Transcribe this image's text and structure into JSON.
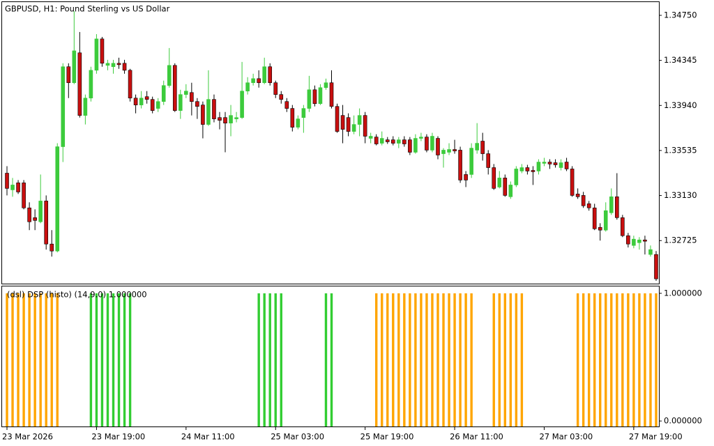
{
  "chart_data": [
    {
      "type": "candlestick",
      "title": "GBPUSD, H1:  Pound Sterling vs US Dollar",
      "categories": [
        "23 Mar 2026",
        null,
        null,
        null,
        null,
        null,
        null,
        null,
        null,
        null,
        null,
        null,
        null,
        null,
        null,
        null,
        "23 Mar 19:00",
        null,
        null,
        null,
        null,
        null,
        null,
        null,
        null,
        null,
        null,
        null,
        null,
        null,
        null,
        null,
        "24 Mar 11:00",
        null,
        null,
        null,
        null,
        null,
        null,
        null,
        null,
        null,
        null,
        null,
        null,
        null,
        null,
        null,
        "25 Mar 03:00",
        null,
        null,
        null,
        null,
        null,
        null,
        null,
        null,
        null,
        null,
        null,
        null,
        null,
        null,
        null,
        "25 Mar 19:00",
        null,
        null,
        null,
        null,
        null,
        null,
        null,
        null,
        null,
        null,
        null,
        null,
        null,
        null,
        null,
        "26 Mar 11:00",
        null,
        null,
        null,
        null,
        null,
        null,
        null,
        null,
        null,
        null,
        null,
        null,
        null,
        null,
        null,
        "27 Mar 03:00",
        null,
        null,
        null,
        null,
        null,
        null,
        null,
        null,
        null,
        null,
        null,
        null,
        null,
        null,
        null,
        "27 Mar 19:00",
        null,
        null,
        null,
        null
      ],
      "open": [
        1.33331,
        1.33181,
        1.33244,
        1.33244,
        1.33019,
        1.32931,
        1.32894,
        1.33081,
        1.32694,
        1.32631,
        1.33569,
        1.34288,
        1.34144,
        1.34413,
        1.3385,
        1.34006,
        1.34256,
        1.34538,
        1.343,
        1.34288,
        1.34319,
        1.34319,
        1.34256,
        1.34006,
        1.33944,
        1.34019,
        1.33994,
        1.33913,
        1.33975,
        1.34119,
        1.343,
        1.33894,
        1.34038,
        1.34056,
        1.33975,
        1.33944,
        1.33769,
        1.33994,
        1.33831,
        1.33831,
        1.33781,
        1.33819,
        1.33831,
        1.34069,
        1.34144,
        1.34181,
        1.34144,
        1.34288,
        1.34144,
        1.34038,
        1.33975,
        1.33913,
        1.33744,
        1.33831,
        1.33913,
        1.34081,
        1.33956,
        1.341,
        1.34144,
        1.33931,
        1.3385,
        1.33831,
        1.33706,
        1.33769,
        1.3385,
        1.33644,
        1.33656,
        1.336,
        1.33631,
        1.33631,
        1.336,
        1.33631,
        1.33631,
        1.33519,
        1.33644,
        1.33656,
        1.33538,
        1.33644,
        1.33506,
        1.33519,
        1.33544,
        1.33538,
        1.33319,
        1.33319,
        1.33538,
        1.33619,
        1.33506,
        1.33381,
        1.33206,
        1.33288,
        1.33119,
        1.33225,
        1.3335,
        1.33381,
        1.33356,
        1.3335,
        1.33419,
        1.33431,
        1.33425,
        1.33381,
        1.33431,
        1.33369,
        1.33144,
        1.33131,
        1.33056,
        1.33019,
        1.32844,
        1.32819,
        1.32975,
        1.33119,
        1.32931,
        1.32769,
        1.32681,
        1.32706,
        1.32731,
        1.326,
        1.326
      ],
      "high": [
        1.33394,
        1.33288,
        1.33269,
        1.33269,
        1.33069,
        1.33006,
        1.33319,
        1.33131,
        1.32819,
        1.336,
        1.34319,
        1.34319,
        1.34788,
        1.346,
        1.34038,
        1.34288,
        1.34581,
        1.34556,
        1.3435,
        1.3435,
        1.34369,
        1.3435,
        1.34269,
        1.34038,
        1.34069,
        1.34069,
        1.34019,
        1.34006,
        1.34163,
        1.34456,
        1.34319,
        1.34081,
        1.34131,
        1.34144,
        1.34006,
        1.33975,
        1.34256,
        1.34038,
        1.33881,
        1.33881,
        1.33944,
        1.33881,
        1.34331,
        1.34194,
        1.34225,
        1.34256,
        1.34369,
        1.34319,
        1.34163,
        1.34069,
        1.34006,
        1.33944,
        1.3385,
        1.33944,
        1.34206,
        1.34119,
        1.34131,
        1.34181,
        1.34256,
        1.33956,
        1.33944,
        1.33869,
        1.3385,
        1.33913,
        1.33881,
        1.33694,
        1.33681,
        1.33706,
        1.33656,
        1.33663,
        1.33656,
        1.33663,
        1.33656,
        1.33681,
        1.33694,
        1.33681,
        1.33694,
        1.33663,
        1.33556,
        1.336,
        1.33631,
        1.33569,
        1.3335,
        1.336,
        1.33781,
        1.33694,
        1.33538,
        1.33413,
        1.3335,
        1.33319,
        1.33256,
        1.33394,
        1.33413,
        1.33406,
        1.33394,
        1.33456,
        1.33469,
        1.33456,
        1.33456,
        1.33456,
        1.33469,
        1.33394,
        1.33194,
        1.33163,
        1.33081,
        1.33056,
        1.32881,
        1.33069,
        1.33194,
        1.33331,
        1.32956,
        1.32794,
        1.32769,
        1.32756,
        1.32769,
        1.32681,
        1.32631
      ],
      "low": [
        1.33131,
        1.33119,
        1.33144,
        1.33006,
        1.32819,
        1.32819,
        1.32881,
        1.32644,
        1.32581,
        1.32619,
        1.33431,
        1.34006,
        1.34131,
        1.33831,
        1.33769,
        1.33975,
        1.34225,
        1.34288,
        1.34256,
        1.34225,
        1.34269,
        1.34225,
        1.33975,
        1.33869,
        1.33913,
        1.33956,
        1.33869,
        1.33881,
        1.33944,
        1.341,
        1.33881,
        1.33819,
        1.34006,
        1.3385,
        1.33819,
        1.33644,
        1.33756,
        1.33788,
        1.33725,
        1.33519,
        1.33663,
        1.33788,
        1.33819,
        1.34038,
        1.34119,
        1.341,
        1.34131,
        1.34119,
        1.34006,
        1.33956,
        1.33881,
        1.33706,
        1.33725,
        1.33694,
        1.33881,
        1.33931,
        1.33944,
        1.34081,
        1.33913,
        1.33694,
        1.336,
        1.33663,
        1.33681,
        1.33663,
        1.336,
        1.336,
        1.33581,
        1.33581,
        1.33594,
        1.33581,
        1.33556,
        1.33569,
        1.33494,
        1.33506,
        1.33619,
        1.33519,
        1.33519,
        1.33456,
        1.33381,
        1.33494,
        1.33506,
        1.33244,
        1.33206,
        1.33288,
        1.33506,
        1.33444,
        1.33319,
        1.33181,
        1.33194,
        1.33119,
        1.331,
        1.33206,
        1.33331,
        1.33319,
        1.33225,
        1.33319,
        1.33394,
        1.33369,
        1.33381,
        1.33356,
        1.3335,
        1.33119,
        1.331,
        1.33019,
        1.32994,
        1.32819,
        1.32725,
        1.32806,
        1.32956,
        1.32913,
        1.32756,
        1.32663,
        1.32656,
        1.32644,
        1.326,
        1.32581,
        1.32363
      ],
      "close": [
        1.33194,
        1.33225,
        1.33162,
        1.33019,
        1.32894,
        1.32906,
        1.33081,
        1.32694,
        1.32631,
        1.33569,
        1.34288,
        1.34144,
        1.34431,
        1.3385,
        1.34006,
        1.34256,
        1.34538,
        1.34319,
        1.34319,
        1.34319,
        1.34306,
        1.34256,
        1.34006,
        1.33944,
        1.34006,
        1.33994,
        1.33894,
        1.33975,
        1.34119,
        1.343,
        1.33894,
        1.34038,
        1.34069,
        1.33975,
        1.33931,
        1.33769,
        1.33994,
        1.33819,
        1.33806,
        1.33781,
        1.3385,
        1.33831,
        1.34069,
        1.34144,
        1.34181,
        1.34144,
        1.34288,
        1.34144,
        1.34038,
        1.33994,
        1.33913,
        1.33744,
        1.33819,
        1.33913,
        1.34081,
        1.33956,
        1.341,
        1.34144,
        1.33931,
        1.33706,
        1.33725,
        1.33706,
        1.33769,
        1.3385,
        1.33663,
        1.33663,
        1.33594,
        1.33644,
        1.33613,
        1.336,
        1.33631,
        1.33594,
        1.33519,
        1.33644,
        1.33656,
        1.33538,
        1.33663,
        1.33494,
        1.33538,
        1.33544,
        1.33531,
        1.33269,
        1.33269,
        1.33556,
        1.336,
        1.33506,
        1.33381,
        1.33194,
        1.33288,
        1.33131,
        1.33225,
        1.33369,
        1.33381,
        1.3335,
        1.33344,
        1.33431,
        1.33431,
        1.33413,
        1.33406,
        1.33425,
        1.33369,
        1.33131,
        1.33119,
        1.33038,
        1.33019,
        1.32831,
        1.32819,
        1.32994,
        1.33119,
        1.32931,
        1.32769,
        1.32694,
        1.32738,
        1.32731,
        1.32719,
        1.32644,
        1.32381
      ],
      "up_color": "#3ccb3c",
      "down_color": "#c80f0f",
      "ylim": [
        1.32338,
        1.34869
      ],
      "yticks": [
        {
          "value": 1.3475,
          "label": "1.34750"
        },
        1.34345,
        {
          "value": 1.3394,
          "label": "1.33940"
        },
        1.33535,
        {
          "value": 1.3313,
          "label": "1.33130"
        },
        1.32725
      ]
    },
    {
      "type": "bar",
      "title": "(dsl) DSP (histo)  (14,9.0) 1.000000",
      "series": [
        {
          "color": "#ffa500",
          "values": [
            1,
            1,
            1,
            1,
            1,
            1,
            1,
            1,
            1,
            1,
            null,
            null,
            null,
            null,
            null,
            null,
            null,
            null,
            null,
            null,
            null,
            null,
            null,
            null,
            null,
            null,
            null,
            null,
            null,
            null,
            null,
            null,
            null,
            null,
            null,
            null,
            null,
            null,
            null,
            null,
            null,
            null,
            null,
            null,
            null,
            null,
            null,
            null,
            null,
            null,
            null,
            null,
            null,
            null,
            null,
            null,
            null,
            null,
            null,
            null,
            null,
            null,
            null,
            null,
            null,
            null,
            1,
            1,
            1,
            1,
            1,
            1,
            1,
            1,
            1,
            1,
            1,
            1,
            1,
            1,
            1,
            1,
            1,
            1,
            null,
            null,
            null,
            1,
            1,
            1,
            1,
            1,
            1,
            null,
            null,
            null,
            null,
            null,
            null,
            null,
            null,
            null,
            1,
            1,
            1,
            1,
            1,
            1,
            1,
            1,
            1,
            1,
            1,
            1,
            1,
            1,
            1
          ]
        },
        {
          "color": "#32cd32",
          "values": [
            null,
            null,
            null,
            null,
            null,
            null,
            null,
            null,
            null,
            null,
            null,
            null,
            null,
            null,
            null,
            1,
            1,
            1,
            1,
            1,
            1,
            1,
            1,
            null,
            null,
            null,
            null,
            null,
            null,
            null,
            null,
            null,
            null,
            null,
            null,
            null,
            null,
            null,
            null,
            null,
            null,
            null,
            null,
            null,
            null,
            1,
            1,
            1,
            1,
            1,
            null,
            null,
            null,
            null,
            null,
            null,
            null,
            1,
            1,
            null,
            null,
            null,
            null,
            null,
            null,
            null,
            null,
            null,
            null,
            null,
            null,
            null,
            null,
            null,
            null,
            null,
            null,
            null,
            null,
            null,
            null,
            null,
            null,
            null,
            null,
            null,
            null,
            null,
            null,
            null,
            null,
            null,
            null,
            null,
            null,
            null,
            null,
            null,
            null,
            null,
            null,
            null,
            null,
            null,
            null,
            null,
            null,
            null,
            null,
            null,
            null,
            null,
            null,
            null,
            null,
            null,
            null
          ]
        }
      ],
      "ylim": [
        -0.043,
        1.054
      ],
      "yticks": [
        {
          "value": 1,
          "label": "1.000000"
        },
        {
          "value": 0,
          "label": "0.000000"
        }
      ]
    }
  ]
}
